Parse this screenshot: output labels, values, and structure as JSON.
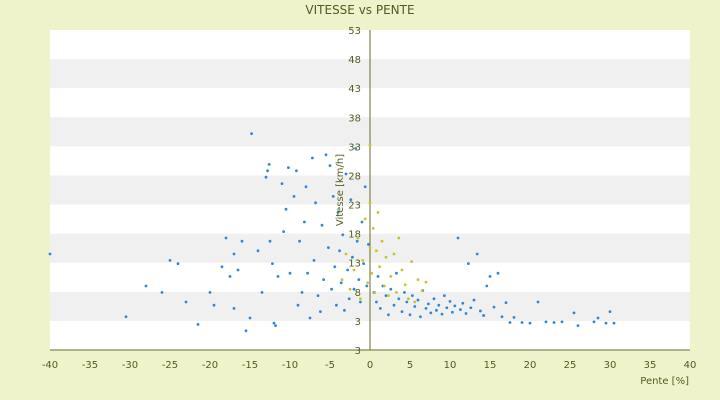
{
  "chart_data": {
    "type": "scatter",
    "title": "VITESSE vs PENTE",
    "xlabel": "Pente [%]",
    "ylabel": "Vitesse [km/h]",
    "xlim": [
      -40,
      40
    ],
    "ylim": [
      3,
      53
    ],
    "xticks": [
      -40,
      -35,
      -30,
      -25,
      -20,
      -15,
      -10,
      -5,
      0,
      5,
      10,
      15,
      20,
      25,
      30,
      35,
      40
    ],
    "ytick_labels": [
      "3",
      "3",
      "8",
      "13",
      "18",
      "23",
      "28",
      "33",
      "38",
      "43",
      "48",
      "53"
    ],
    "grid": "horizontal bands",
    "legend": "none",
    "colors": {
      "background": "#eef3cc",
      "plot": "#ffffff",
      "band": "#f0f0f0",
      "axis": "#6b6b2a",
      "series_1": "#2e86d9",
      "series_2": "#c9c22a"
    },
    "series": [
      {
        "color": "#2e86d9",
        "points": [
          [
            -40,
            18
          ],
          [
            -30.5,
            8.2
          ],
          [
            -28,
            13
          ],
          [
            -26,
            12
          ],
          [
            -25,
            17
          ],
          [
            -24,
            16.5
          ],
          [
            -23,
            10.5
          ],
          [
            -21.5,
            7
          ],
          [
            -20,
            12
          ],
          [
            -19.5,
            10
          ],
          [
            -18.5,
            16
          ],
          [
            -18,
            20.5
          ],
          [
            -17.5,
            14.5
          ],
          [
            -17,
            9.5
          ],
          [
            -17,
            18
          ],
          [
            -16.5,
            15.5
          ],
          [
            -16,
            20
          ],
          [
            -15.5,
            6
          ],
          [
            -15,
            8
          ],
          [
            -14.8,
            36.8
          ],
          [
            -14,
            18.5
          ],
          [
            -13.5,
            12
          ],
          [
            -13,
            30
          ],
          [
            -12.8,
            31
          ],
          [
            -12.6,
            32
          ],
          [
            -12.5,
            20
          ],
          [
            -12.2,
            16.5
          ],
          [
            -12,
            7.2
          ],
          [
            -11.8,
            6.8
          ],
          [
            -11.5,
            14.5
          ],
          [
            -11,
            29
          ],
          [
            -10.8,
            21.5
          ],
          [
            -10.5,
            25
          ],
          [
            -10.2,
            31.5
          ],
          [
            -10,
            15
          ],
          [
            -9.5,
            27
          ],
          [
            -9.2,
            31
          ],
          [
            -9,
            10
          ],
          [
            -8.8,
            20
          ],
          [
            -8.5,
            12
          ],
          [
            -8.2,
            23
          ],
          [
            -8,
            28.5
          ],
          [
            -7.8,
            15
          ],
          [
            -7.5,
            8
          ],
          [
            -7.2,
            33
          ],
          [
            -7,
            17
          ],
          [
            -6.8,
            26
          ],
          [
            -6.5,
            11.5
          ],
          [
            -6.2,
            9
          ],
          [
            -6,
            22.5
          ],
          [
            -5.8,
            14
          ],
          [
            -5.5,
            33.5
          ],
          [
            -5.2,
            19
          ],
          [
            -5,
            31.8
          ],
          [
            -4.8,
            12.5
          ],
          [
            -4.6,
            27
          ],
          [
            -4.4,
            16
          ],
          [
            -4.2,
            10
          ],
          [
            -4,
            24.5
          ],
          [
            -3.8,
            18.5
          ],
          [
            -3.6,
            13.5
          ],
          [
            -3.4,
            21
          ],
          [
            -3.2,
            9.2
          ],
          [
            -3,
            30.5
          ],
          [
            -2.8,
            15.5
          ],
          [
            -2.6,
            11
          ],
          [
            -2.4,
            26.5
          ],
          [
            -2.2,
            17.5
          ],
          [
            -2,
            12.5
          ],
          [
            -1.8,
            34.5
          ],
          [
            -1.6,
            20
          ],
          [
            -1.4,
            14
          ],
          [
            -1.2,
            10.5
          ],
          [
            -1,
            23
          ],
          [
            -0.8,
            16.5
          ],
          [
            -0.6,
            28.5
          ],
          [
            -0.4,
            13
          ],
          [
            -0.2,
            19.5
          ],
          [
            0.5,
            12
          ],
          [
            0.8,
            10.5
          ],
          [
            1,
            14.5
          ],
          [
            1.3,
            9.5
          ],
          [
            1.6,
            13
          ],
          [
            2,
            11.5
          ],
          [
            2.3,
            8.5
          ],
          [
            2.6,
            12.5
          ],
          [
            3,
            10
          ],
          [
            3.3,
            15
          ],
          [
            3.6,
            11
          ],
          [
            4,
            9
          ],
          [
            4.3,
            12
          ],
          [
            4.6,
            10.5
          ],
          [
            5,
            8.5
          ],
          [
            5.3,
            11.5
          ],
          [
            5.6,
            9.8
          ],
          [
            6,
            10.8
          ],
          [
            6.3,
            8.2
          ],
          [
            6.6,
            12.3
          ],
          [
            7,
            9.5
          ],
          [
            7.3,
            10.2
          ],
          [
            7.6,
            8.8
          ],
          [
            8,
            11
          ],
          [
            8.3,
            9.2
          ],
          [
            8.6,
            10
          ],
          [
            9,
            8.6
          ],
          [
            9.3,
            11.5
          ],
          [
            9.6,
            9.6
          ],
          [
            10,
            10.6
          ],
          [
            10.3,
            8.9
          ],
          [
            10.6,
            9.9
          ],
          [
            11,
            20.5
          ],
          [
            11.3,
            9.3
          ],
          [
            11.6,
            10.3
          ],
          [
            12,
            8.7
          ],
          [
            12.3,
            16.5
          ],
          [
            12.6,
            9.6
          ],
          [
            13,
            10.8
          ],
          [
            13.4,
            18
          ],
          [
            13.8,
            9.1
          ],
          [
            14.2,
            8.4
          ],
          [
            14.6,
            13
          ],
          [
            15,
            14.5
          ],
          [
            15.5,
            9.7
          ],
          [
            16,
            15
          ],
          [
            16.5,
            8.2
          ],
          [
            17,
            10.4
          ],
          [
            17.5,
            7.3
          ],
          [
            18,
            8.1
          ],
          [
            19,
            7.3
          ],
          [
            20,
            7.2
          ],
          [
            21,
            10.5
          ],
          [
            22,
            7.4
          ],
          [
            23,
            7.3
          ],
          [
            24,
            7.4
          ],
          [
            25.5,
            8.8
          ],
          [
            26,
            6.8
          ],
          [
            28,
            7.4
          ],
          [
            28.5,
            8
          ],
          [
            29.5,
            7.2
          ],
          [
            30,
            9
          ],
          [
            30.5,
            7.2
          ]
        ]
      },
      {
        "color": "#c9c22a",
        "points": [
          [
            -3.5,
            14
          ],
          [
            -3,
            18
          ],
          [
            -2.5,
            12.5
          ],
          [
            -2,
            15.5
          ],
          [
            -1.5,
            20.5
          ],
          [
            -1.2,
            11
          ],
          [
            -0.9,
            17
          ],
          [
            -0.6,
            23.5
          ],
          [
            -0.3,
            13.5
          ],
          [
            0,
            19
          ],
          [
            0,
            26
          ],
          [
            0,
            35
          ],
          [
            0.2,
            15
          ],
          [
            0.4,
            22
          ],
          [
            0.6,
            12
          ],
          [
            0.8,
            18.5
          ],
          [
            1,
            24.5
          ],
          [
            1.2,
            16
          ],
          [
            1.5,
            20
          ],
          [
            1.8,
            13
          ],
          [
            2,
            17.5
          ],
          [
            2.3,
            11.5
          ],
          [
            2.6,
            14.5
          ],
          [
            3,
            18
          ],
          [
            3.3,
            12
          ],
          [
            3.6,
            20.5
          ],
          [
            4,
            15.5
          ],
          [
            4.4,
            13.2
          ],
          [
            4.8,
            11
          ],
          [
            5.2,
            16.8
          ],
          [
            5.6,
            10.5
          ],
          [
            6,
            14
          ],
          [
            6.5,
            12.3
          ],
          [
            7,
            13.6
          ]
        ]
      }
    ]
  }
}
